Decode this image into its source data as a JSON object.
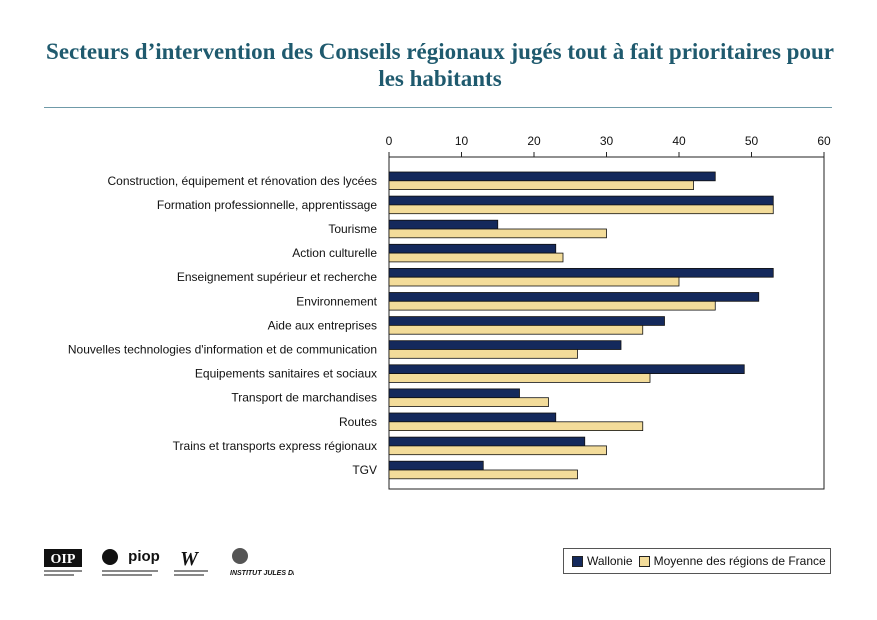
{
  "title": "Secteurs d’intervention des Conseils régionaux jugés tout à fait prioritaires pour les habitants",
  "colors": {
    "title": "#1f5a6e",
    "wallonie": "#14295c",
    "france": "#f3dc9a"
  },
  "logos": [
    {
      "name": "oip-logo",
      "text": "OIP"
    },
    {
      "name": "piop-logo",
      "text": "piop"
    },
    {
      "name": "walloon-region-logo",
      "text": "W"
    },
    {
      "name": "institut-jules-destree-logo",
      "text": "INSTITUT JULES DESTRÉE"
    }
  ],
  "chart_data": {
    "type": "bar",
    "orientation": "horizontal",
    "title": "Secteurs d’intervention des Conseils régionaux jugés tout à fait prioritaires pour les habitants",
    "xlabel": "",
    "ylabel": "",
    "xlim": [
      0,
      60
    ],
    "ticks": [
      "0",
      "10",
      "20",
      "30",
      "40",
      "50",
      "60"
    ],
    "axis_position": "top",
    "grid": false,
    "legend_position": "bottom-right",
    "categories": [
      "Construction, équipement et rénovation des lycées",
      "Formation professionnelle, apprentissage",
      "Tourisme",
      "Action culturelle",
      "Enseignement supérieur et recherche",
      "Environnement",
      "Aide aux entreprises",
      "Nouvelles technologies d'information et de communication",
      "Equipements sanitaires et sociaux",
      "Transport de marchandises",
      "Routes",
      "Trains et transports express régionaux",
      "TGV"
    ],
    "series": [
      {
        "name": "Wallonie",
        "color": "#14295c",
        "values": [
          45,
          53,
          15,
          23,
          53,
          51,
          38,
          32,
          49,
          18,
          23,
          27,
          13
        ]
      },
      {
        "name": "Moyenne des régions de France",
        "color": "#f3dc9a",
        "values": [
          42,
          53,
          30,
          24,
          40,
          45,
          35,
          26,
          36,
          22,
          35,
          30,
          26
        ]
      }
    ]
  }
}
